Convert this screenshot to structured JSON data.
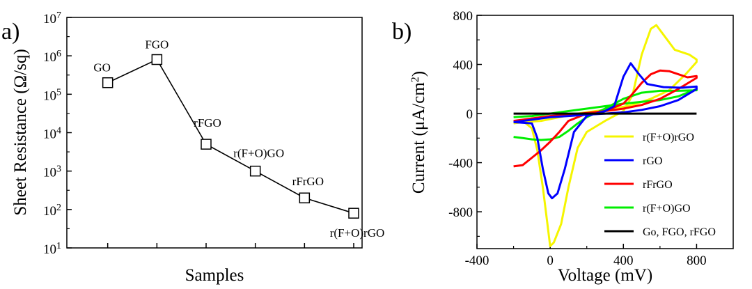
{
  "panel_a": {
    "label": "a)"
  },
  "panel_b": {
    "label": "b)"
  },
  "chart_data": [
    {
      "type": "line",
      "panel": "a)",
      "title": "",
      "xlabel": "Samples",
      "ylabel": "Sheet Resistance (Ω/sq)",
      "yscale": "log",
      "ylim": [
        10,
        10000000
      ],
      "y_tick_labels": [
        {
          "base": "10",
          "exp": "1"
        },
        {
          "base": "10",
          "exp": "2"
        },
        {
          "base": "10",
          "exp": "3"
        },
        {
          "base": "10",
          "exp": "4"
        },
        {
          "base": "10",
          "exp": "5"
        },
        {
          "base": "10",
          "exp": "6"
        },
        {
          "base": "10",
          "exp": "7"
        }
      ],
      "marker": "open-square",
      "categories": [
        "GO",
        "FGO",
        "rFGO",
        "r(F+O)GO",
        "rFrGO",
        "r(F+O)rGO"
      ],
      "values": [
        200000,
        800000,
        5000,
        1000,
        200,
        80
      ],
      "grid": false
    },
    {
      "type": "line",
      "panel": "b)",
      "title": "",
      "xlabel": "Voltage (mV)",
      "ylabel_main": "Current (μA/cm",
      "ylabel_sup": "2",
      "ylabel_end": ")",
      "xlim": [
        -400,
        1000
      ],
      "ylim": [
        -1100,
        800
      ],
      "x_ticks": [
        -400,
        0,
        400,
        800
      ],
      "x_tick_labels": [
        "-400",
        "0",
        "400",
        "800"
      ],
      "y_ticks": [
        -800,
        -400,
        0,
        400,
        800
      ],
      "y_tick_labels": [
        "-800",
        "-400",
        "0",
        "400",
        "800"
      ],
      "legend_position": "lower-right",
      "series": [
        {
          "name": "r(F+O)rGO",
          "color": "#f5f500",
          "points": [
            [
              -200,
              -80
            ],
            [
              -150,
              -60
            ],
            [
              -100,
              -120
            ],
            [
              -70,
              -300
            ],
            [
              -40,
              -600
            ],
            [
              -15,
              -900
            ],
            [
              0,
              -1080
            ],
            [
              20,
              -1050
            ],
            [
              60,
              -900
            ],
            [
              100,
              -600
            ],
            [
              150,
              -280
            ],
            [
              200,
              -150
            ],
            [
              300,
              -60
            ],
            [
              400,
              20
            ],
            [
              450,
              150
            ],
            [
              500,
              480
            ],
            [
              550,
              690
            ],
            [
              580,
              720
            ],
            [
              620,
              640
            ],
            [
              680,
              520
            ],
            [
              760,
              480
            ],
            [
              800,
              440
            ],
            [
              800,
              420
            ],
            [
              740,
              320
            ],
            [
              650,
              190
            ],
            [
              550,
              120
            ],
            [
              450,
              70
            ],
            [
              350,
              40
            ],
            [
              250,
              20
            ],
            [
              150,
              0
            ],
            [
              50,
              -30
            ],
            [
              -50,
              -60
            ],
            [
              -150,
              -70
            ],
            [
              -200,
              -80
            ]
          ]
        },
        {
          "name": "rGO",
          "color": "#0000ff",
          "points": [
            [
              -200,
              -70
            ],
            [
              -100,
              -80
            ],
            [
              -70,
              -200
            ],
            [
              -40,
              -450
            ],
            [
              -10,
              -650
            ],
            [
              10,
              -690
            ],
            [
              40,
              -650
            ],
            [
              80,
              -450
            ],
            [
              130,
              -150
            ],
            [
              200,
              -20
            ],
            [
              300,
              20
            ],
            [
              350,
              60
            ],
            [
              400,
              300
            ],
            [
              440,
              410
            ],
            [
              480,
              330
            ],
            [
              530,
              240
            ],
            [
              620,
              215
            ],
            [
              720,
              210
            ],
            [
              800,
              220
            ],
            [
              800,
              200
            ],
            [
              700,
              110
            ],
            [
              600,
              60
            ],
            [
              500,
              30
            ],
            [
              400,
              10
            ],
            [
              300,
              0
            ],
            [
              200,
              -10
            ],
            [
              100,
              -20
            ],
            [
              0,
              -30
            ],
            [
              -100,
              -50
            ],
            [
              -200,
              -70
            ]
          ]
        },
        {
          "name": "rFrGO",
          "color": "#ff0000",
          "points": [
            [
              -200,
              -430
            ],
            [
              -150,
              -420
            ],
            [
              -100,
              -360
            ],
            [
              -50,
              -300
            ],
            [
              0,
              -230
            ],
            [
              50,
              -150
            ],
            [
              100,
              -60
            ],
            [
              200,
              0
            ],
            [
              300,
              20
            ],
            [
              400,
              80
            ],
            [
              450,
              160
            ],
            [
              500,
              250
            ],
            [
              550,
              320
            ],
            [
              600,
              350
            ],
            [
              650,
              345
            ],
            [
              700,
              320
            ],
            [
              750,
              295
            ],
            [
              800,
              305
            ],
            [
              800,
              290
            ],
            [
              700,
              200
            ],
            [
              600,
              120
            ],
            [
              500,
              70
            ],
            [
              400,
              40
            ],
            [
              300,
              20
            ],
            [
              200,
              5
            ],
            [
              100,
              -10
            ],
            [
              0,
              -20
            ],
            [
              -100,
              -40
            ],
            [
              -200,
              -60
            ]
          ]
        },
        {
          "name": "r(F+O)GO",
          "color": "#00ee00",
          "points": [
            [
              -200,
              -190
            ],
            [
              -150,
              -200
            ],
            [
              -100,
              -210
            ],
            [
              -50,
              -215
            ],
            [
              0,
              -210
            ],
            [
              50,
              -190
            ],
            [
              100,
              -140
            ],
            [
              150,
              -80
            ],
            [
              200,
              -30
            ],
            [
              300,
              40
            ],
            [
              400,
              120
            ],
            [
              500,
              170
            ],
            [
              600,
              185
            ],
            [
              700,
              185
            ],
            [
              800,
              190
            ],
            [
              800,
              200
            ],
            [
              700,
              140
            ],
            [
              600,
              110
            ],
            [
              500,
              95
            ],
            [
              400,
              80
            ],
            [
              300,
              60
            ],
            [
              200,
              40
            ],
            [
              100,
              20
            ],
            [
              0,
              0
            ],
            [
              -100,
              -20
            ],
            [
              -200,
              -30
            ]
          ]
        },
        {
          "name": "Go, FGO, rFGO",
          "color": "#000000",
          "points": [
            [
              -200,
              0
            ],
            [
              800,
              0
            ]
          ]
        }
      ],
      "grid": false
    }
  ]
}
